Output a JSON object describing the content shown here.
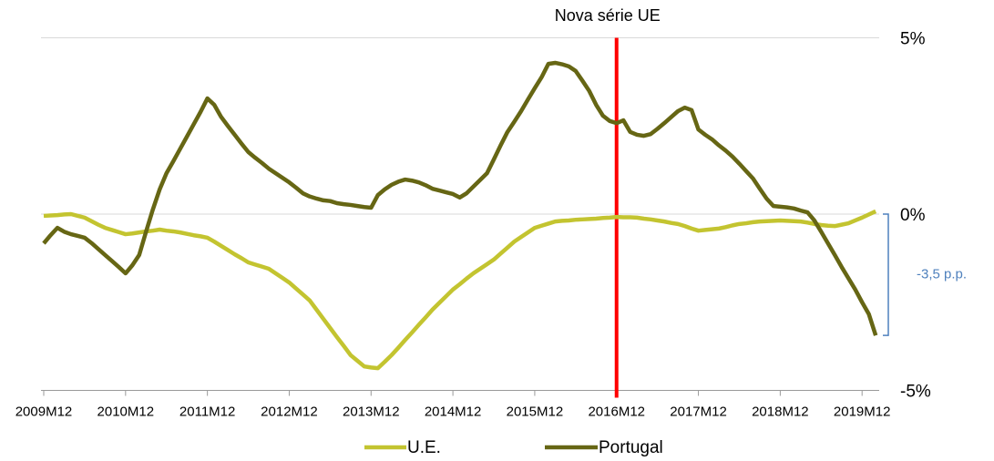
{
  "chart_data": {
    "type": "line",
    "categories": [
      "2009M12",
      null,
      null,
      null,
      null,
      null,
      null,
      null,
      null,
      null,
      null,
      null,
      "2010M12",
      null,
      null,
      null,
      null,
      null,
      null,
      null,
      null,
      null,
      null,
      null,
      "2011M12",
      null,
      null,
      null,
      null,
      null,
      null,
      null,
      null,
      null,
      null,
      null,
      "2012M12",
      null,
      null,
      null,
      null,
      null,
      null,
      null,
      null,
      null,
      null,
      null,
      "2013M12",
      null,
      null,
      null,
      null,
      null,
      null,
      null,
      null,
      null,
      null,
      null,
      "2014M12",
      null,
      null,
      null,
      null,
      null,
      null,
      null,
      null,
      null,
      null,
      null,
      "2015M12",
      null,
      null,
      null,
      null,
      null,
      null,
      null,
      null,
      null,
      null,
      null,
      "2016M12",
      null,
      null,
      null,
      null,
      null,
      null,
      null,
      null,
      null,
      null,
      null,
      "2017M12",
      null,
      null,
      null,
      null,
      null,
      null,
      null,
      null,
      null,
      null,
      null,
      "2018M12",
      null,
      null,
      null,
      null,
      null,
      null,
      null,
      null,
      null,
      null,
      null,
      "2019M12",
      null,
      null
    ],
    "series": [
      {
        "name": "U.E.",
        "color": "#c3c430",
        "values": [
          -0.05,
          -0.04,
          -0.03,
          -0.01,
          0,
          -0.05,
          -0.1,
          -0.2,
          -0.3,
          -0.39,
          -0.45,
          -0.51,
          -0.57,
          -0.55,
          -0.52,
          -0.49,
          -0.47,
          -0.44,
          -0.47,
          -0.49,
          -0.52,
          -0.56,
          -0.6,
          -0.63,
          -0.67,
          -0.78,
          -0.9,
          -1.02,
          -1.14,
          -1.25,
          -1.37,
          -1.43,
          -1.49,
          -1.55,
          -1.68,
          -1.81,
          -1.94,
          -2.11,
          -2.28,
          -2.45,
          -2.71,
          -2.97,
          -3.23,
          -3.49,
          -3.74,
          -4.0,
          -4.16,
          -4.32,
          -4.35,
          -4.37,
          -4.19,
          -4.0,
          -3.79,
          -3.57,
          -3.36,
          -3.14,
          -2.93,
          -2.71,
          -2.52,
          -2.33,
          -2.14,
          -1.99,
          -1.83,
          -1.68,
          -1.55,
          -1.42,
          -1.29,
          -1.12,
          -0.95,
          -0.78,
          -0.65,
          -0.52,
          -0.39,
          -0.33,
          -0.27,
          -0.21,
          -0.19,
          -0.18,
          -0.16,
          -0.15,
          -0.14,
          -0.13,
          -0.11,
          -0.1,
          -0.08,
          -0.09,
          -0.09,
          -0.1,
          -0.13,
          -0.15,
          -0.18,
          -0.21,
          -0.25,
          -0.28,
          -0.34,
          -0.41,
          -0.47,
          -0.45,
          -0.43,
          -0.41,
          -0.37,
          -0.32,
          -0.28,
          -0.26,
          -0.23,
          -0.21,
          -0.2,
          -0.19,
          -0.18,
          -0.19,
          -0.2,
          -0.21,
          -0.24,
          -0.28,
          -0.31,
          -0.33,
          -0.34,
          -0.3,
          -0.26,
          -0.18,
          -0.1,
          -0.01,
          0.08
        ]
      },
      {
        "name": "Portugal",
        "color": "#666614",
        "values": [
          -0.83,
          -0.6,
          -0.39,
          -0.5,
          -0.57,
          -0.62,
          -0.67,
          -0.82,
          -0.99,
          -1.16,
          -1.33,
          -1.5,
          -1.68,
          -1.45,
          -1.16,
          -0.5,
          0.13,
          0.7,
          1.16,
          1.5,
          1.85,
          2.2,
          2.55,
          2.9,
          3.28,
          3.1,
          2.76,
          2.5,
          2.25,
          2.0,
          1.76,
          1.6,
          1.45,
          1.29,
          1.16,
          1.03,
          0.9,
          0.75,
          0.59,
          0.5,
          0.44,
          0.39,
          0.37,
          0.31,
          0.28,
          0.26,
          0.23,
          0.2,
          0.18,
          0.54,
          0.7,
          0.83,
          0.92,
          0.98,
          0.95,
          0.9,
          0.82,
          0.72,
          0.67,
          0.62,
          0.57,
          0.47,
          0.59,
          0.78,
          0.97,
          1.16,
          1.55,
          1.95,
          2.33,
          2.62,
          2.92,
          3.25,
          3.57,
          3.88,
          4.26,
          4.29,
          4.25,
          4.19,
          4.06,
          3.78,
          3.49,
          3.1,
          2.79,
          2.64,
          2.58,
          2.66,
          2.33,
          2.25,
          2.22,
          2.27,
          2.42,
          2.58,
          2.75,
          2.92,
          3.02,
          2.95,
          2.4,
          2.25,
          2.12,
          1.95,
          1.8,
          1.63,
          1.43,
          1.22,
          1.01,
          0.72,
          0.44,
          0.23,
          0.21,
          0.19,
          0.16,
          0.1,
          0.05,
          -0.18,
          -0.5,
          -0.83,
          -1.16,
          -1.5,
          -1.82,
          -2.14,
          -2.5,
          -2.84,
          -3.44
        ]
      }
    ],
    "ylim": [
      -5,
      5
    ],
    "yticks": [
      {
        "value": 5,
        "label": "5%"
      },
      {
        "value": 0,
        "label": "0%"
      },
      {
        "value": -5,
        "label": "-5%"
      }
    ],
    "grid": true,
    "vline": {
      "category": "2016M12",
      "label": "Nova série UE",
      "color": "#ff0000"
    },
    "gap_annotation": {
      "text": "-3,5 p.p.",
      "color": "#4f81bd"
    },
    "legend": "bottom"
  }
}
